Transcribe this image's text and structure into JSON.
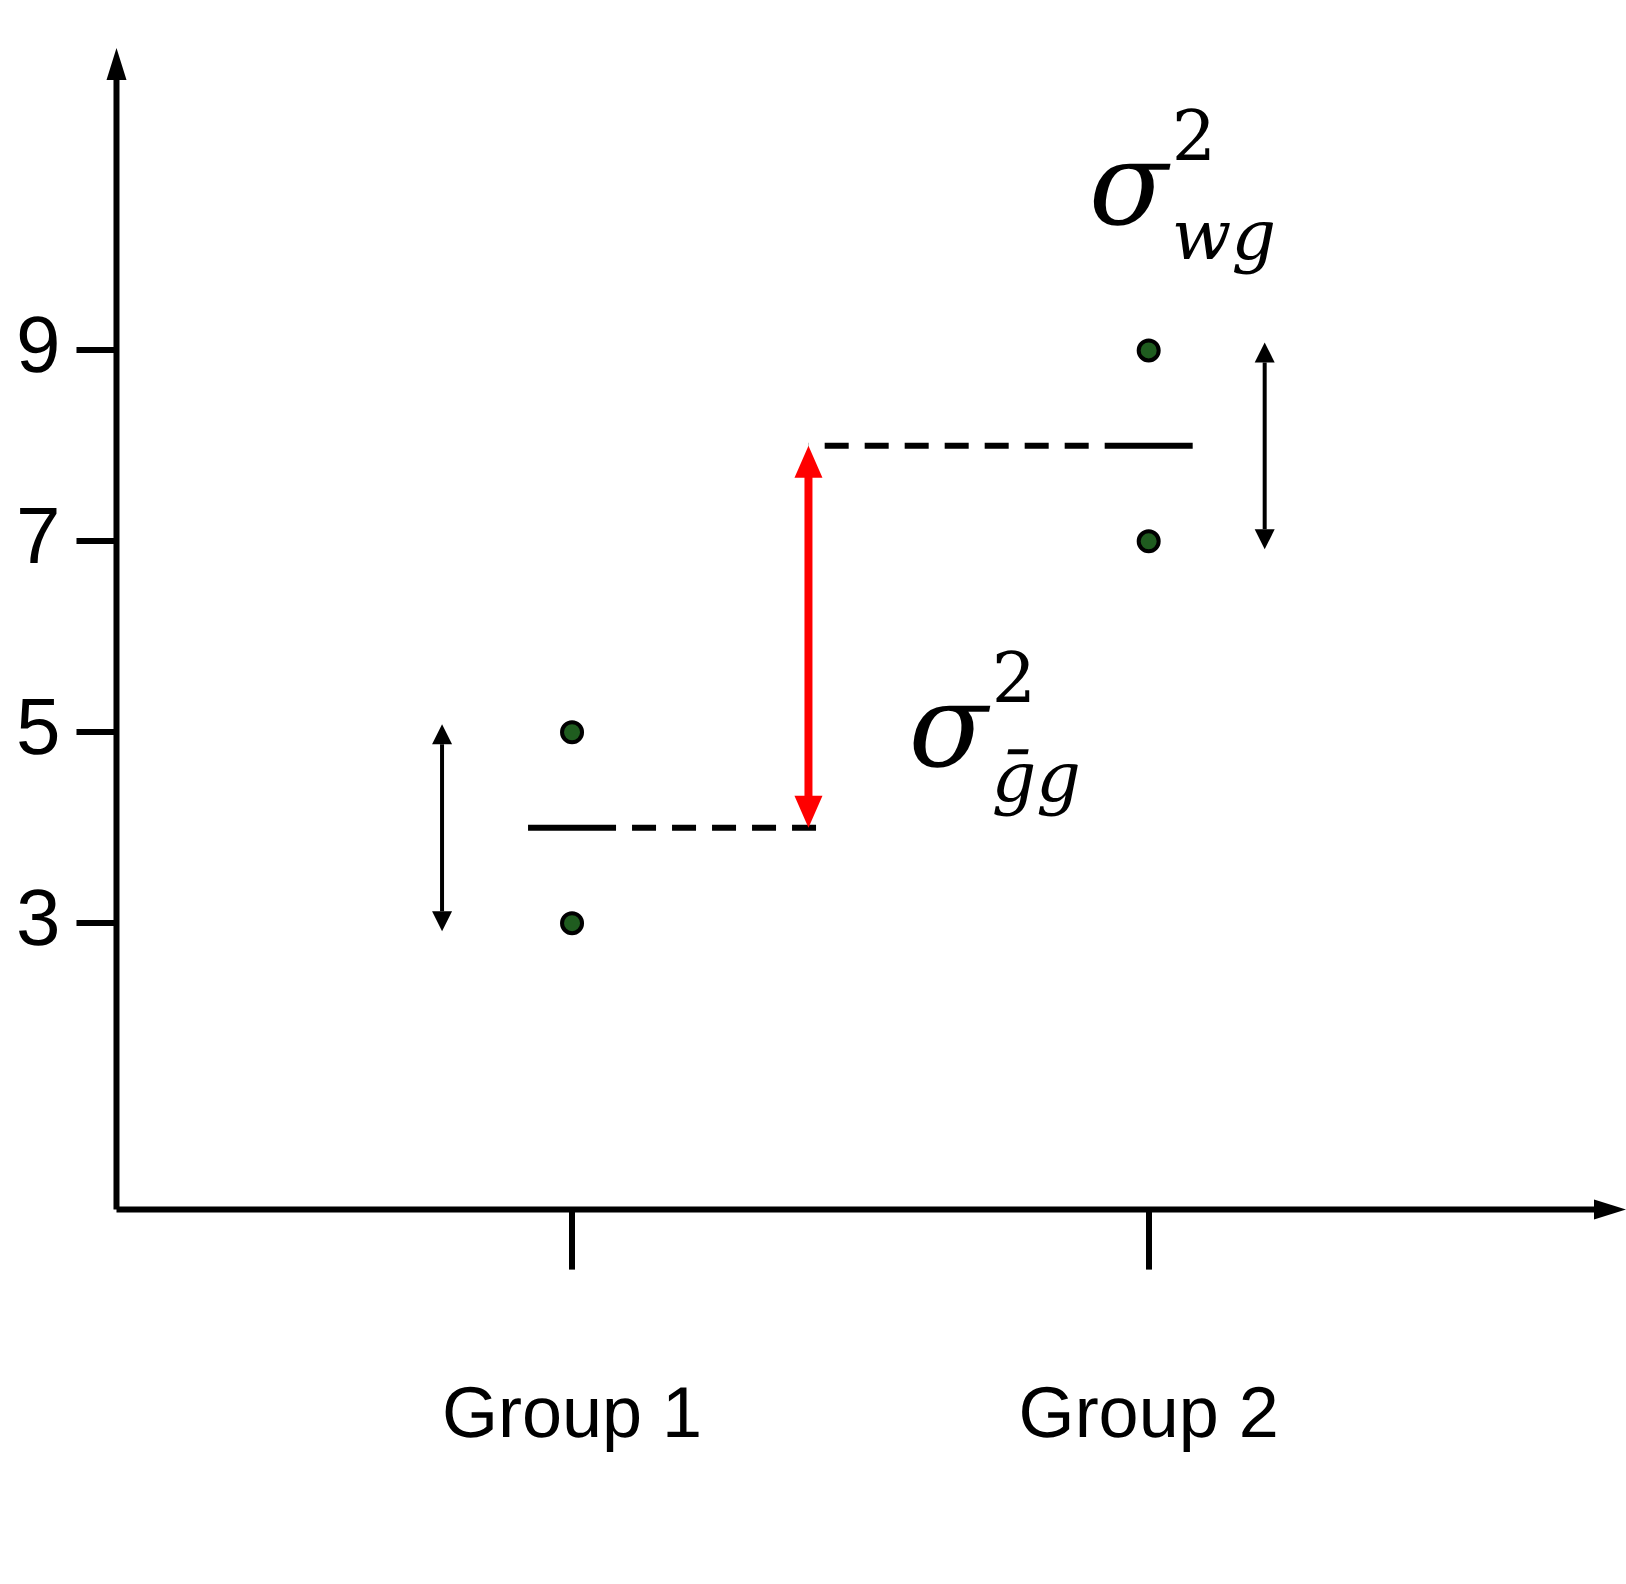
{
  "chart_data": {
    "type": "scatter",
    "categories": [
      "Group 1",
      "Group 2"
    ],
    "ylim": [
      0,
      12
    ],
    "yticks": [
      3,
      5,
      7,
      9
    ],
    "grid": false,
    "legend": false,
    "series": [
      {
        "color": "#1f5c1f",
        "x": [
          "Group 1",
          "Group 1",
          "Group 2",
          "Group 2"
        ],
        "values": [
          5,
          3,
          9,
          7
        ],
        "marker": "circle"
      }
    ],
    "ref_lines": [
      {
        "axis": "y",
        "value": 4,
        "line_style": "dashed",
        "color": "#000000"
      },
      {
        "axis": "y",
        "value": 8,
        "line_style": "dashed",
        "color": "#000000"
      }
    ],
    "annotations": [
      "σ$^{2}$$_{wg}$",
      {
        "text": "σ$^{2}$$_{ḡg}$",
        "y": 8
      }
    ]
  }
}
